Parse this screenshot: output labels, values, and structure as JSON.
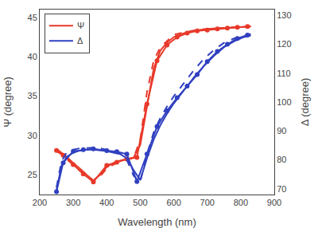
{
  "chart_data": {
    "type": "line",
    "x_label": "Wavelength (nm)",
    "y_label": "Ψ (degree)",
    "y2_label": "Δ (degree)",
    "xlim": [
      200,
      900
    ],
    "ylim": [
      22.5,
      46
    ],
    "y2lim": [
      68,
      132
    ],
    "xticks": [
      200,
      300,
      400,
      500,
      600,
      700,
      800,
      900
    ],
    "yticks": [
      25,
      30,
      35,
      40,
      45
    ],
    "y2ticks": [
      70,
      80,
      90,
      100,
      110,
      120,
      130
    ],
    "grid": false,
    "legend": "upper left",
    "series": [
      {
        "name": "Ψ",
        "color": "#e8392a",
        "line_style": "solid",
        "x": [
          250,
          265,
          280,
          300,
          320,
          340,
          360,
          380,
          400,
          420,
          440,
          460,
          480,
          500,
          520,
          540,
          560,
          580,
          600,
          630,
          660,
          690,
          720,
          750,
          780,
          810,
          830
        ],
        "values": [
          28.3,
          27.8,
          27.3,
          26.5,
          25.8,
          25.0,
          24.3,
          25.0,
          26.0,
          26.5,
          26.8,
          27.0,
          27.2,
          28.8,
          33.8,
          38.5,
          40.8,
          41.8,
          42.5,
          43.0,
          43.3,
          43.5,
          43.6,
          43.7,
          43.75,
          43.8,
          43.85
        ]
      },
      {
        "color": "#e8392a",
        "line_style": "solid",
        "marker": "circle",
        "x": [
          250,
          270,
          300,
          330,
          360,
          400,
          430,
          460,
          490,
          520,
          550,
          580,
          610,
          640,
          670,
          700,
          730,
          760,
          790,
          820
        ],
        "values": [
          28.1,
          27.5,
          26.3,
          25.1,
          24.1,
          26.2,
          26.6,
          27.0,
          27.2,
          34.0,
          39.5,
          41.5,
          42.5,
          43.0,
          43.3,
          43.4,
          43.55,
          43.65,
          43.75,
          43.85
        ]
      },
      {
        "color": "#e8392a",
        "line_style": "dashed",
        "x": [
          250,
          265,
          280,
          300,
          320,
          340,
          360,
          380,
          400,
          420,
          440,
          460,
          480,
          500,
          520,
          540,
          560,
          580,
          600,
          630,
          660,
          690,
          720,
          750,
          780,
          810,
          830
        ],
        "values": [
          28.0,
          27.6,
          27.0,
          26.3,
          25.5,
          24.8,
          24.2,
          24.8,
          25.8,
          26.3,
          26.7,
          26.95,
          27.1,
          29.5,
          35.5,
          39.5,
          41.2,
          42.0,
          42.8,
          43.1,
          43.35,
          43.5,
          43.6,
          43.7,
          43.78,
          43.83,
          43.87
        ]
      },
      {
        "name": "Δ",
        "color": "#3040c0",
        "line_style": "solid",
        "axis": "y2",
        "x": [
          250,
          265,
          280,
          300,
          320,
          340,
          360,
          380,
          400,
          420,
          440,
          460,
          480,
          500,
          520,
          540,
          560,
          580,
          600,
          630,
          660,
          690,
          720,
          750,
          780,
          810,
          830
        ],
        "values": [
          69.5,
          78.0,
          81.0,
          82.5,
          83.2,
          83.5,
          83.5,
          83.3,
          83.0,
          82.5,
          82.0,
          80.5,
          76.5,
          73.0,
          80.5,
          87.0,
          92.0,
          96.0,
          99.5,
          104.0,
          108.5,
          112.5,
          116.0,
          119.0,
          121.0,
          122.5,
          123.0
        ]
      },
      {
        "color": "#3040c0",
        "line_style": "solid",
        "marker": "circle",
        "axis": "y2",
        "x": [
          250,
          270,
          300,
          330,
          360,
          400,
          430,
          460,
          490,
          520,
          550,
          580,
          610,
          640,
          670,
          700,
          730,
          760,
          790,
          820
        ],
        "values": [
          69.0,
          79.0,
          83.0,
          83.5,
          83.8,
          83.2,
          82.8,
          82.0,
          72.5,
          82.0,
          91.5,
          97.0,
          101.5,
          105.5,
          109.5,
          114.0,
          117.5,
          120.0,
          122.0,
          123.2
        ]
      },
      {
        "color": "#3040c0",
        "line_style": "dashed",
        "axis": "y2",
        "x": [
          250,
          265,
          280,
          300,
          320,
          340,
          360,
          380,
          400,
          420,
          440,
          460,
          480,
          500,
          520,
          540,
          560,
          580,
          600,
          630,
          660,
          690,
          720,
          750,
          780,
          810,
          830
        ],
        "values": [
          70.5,
          79.5,
          82.5,
          83.5,
          84.0,
          84.2,
          84.2,
          84.0,
          83.5,
          83.0,
          82.2,
          80.0,
          74.5,
          72.5,
          82.0,
          89.5,
          94.5,
          98.5,
          102.0,
          106.5,
          111.0,
          115.0,
          118.0,
          120.5,
          122.0,
          123.0,
          123.5
        ]
      }
    ]
  }
}
